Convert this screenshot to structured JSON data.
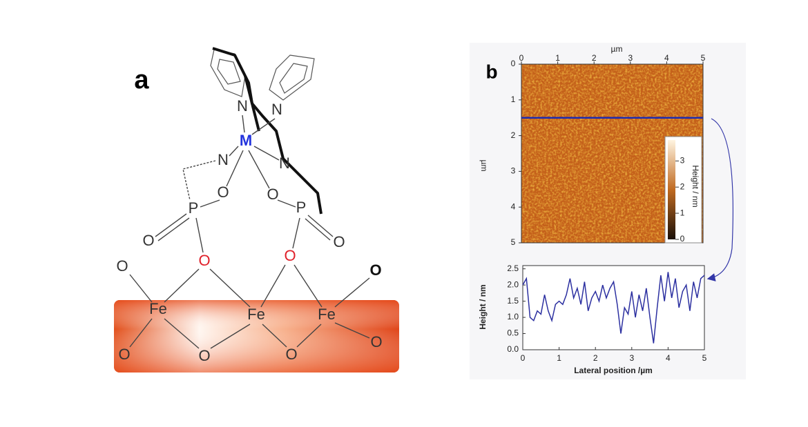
{
  "panel_a": {
    "label": "a",
    "atoms": [
      "N",
      "N",
      "M",
      "N",
      "N",
      "O",
      "O",
      "P",
      "P",
      "O",
      "O",
      "O",
      "O",
      "O",
      "O",
      "Fe",
      "Fe",
      "Fe",
      "O",
      "O",
      "O",
      "O"
    ]
  },
  "panel_b": {
    "label": "b",
    "afm_image": {
      "xlabel": "µm",
      "ylabel": "µm",
      "xlim": [
        0,
        5
      ],
      "ylim": [
        0,
        5
      ],
      "xticks": [
        0,
        1,
        2,
        3,
        4,
        5
      ],
      "yticks": [
        0,
        1,
        2,
        3,
        4,
        5
      ],
      "scan_line_y": 1.5,
      "colorbar": {
        "label": "Height / nm",
        "clim": [
          0,
          3.8
        ],
        "ticks": [
          0,
          1,
          2,
          3
        ]
      }
    }
  },
  "chart_data": {
    "type": "line",
    "xlabel": "Lateral position /µm",
    "ylabel": "Height / nm",
    "xlim": [
      0,
      5
    ],
    "ylim": [
      0,
      2.6
    ],
    "xticks": [
      0,
      1,
      2,
      3,
      4,
      5
    ],
    "yticks": [
      {
        "value": 0,
        "label": "0.0"
      },
      0.5,
      {
        "value": 1,
        "label": "1.0"
      },
      1.5,
      {
        "value": 2,
        "label": "2.0"
      },
      2.5
    ],
    "color": "#2b2fa0",
    "x": [
      0,
      0.1,
      0.2,
      0.3,
      0.4,
      0.5,
      0.6,
      0.7,
      0.8,
      0.9,
      1.0,
      1.1,
      1.2,
      1.3,
      1.4,
      1.5,
      1.6,
      1.7,
      1.8,
      1.9,
      2.0,
      2.1,
      2.2,
      2.3,
      2.4,
      2.5,
      2.6,
      2.7,
      2.8,
      2.9,
      3.0,
      3.1,
      3.2,
      3.3,
      3.4,
      3.5,
      3.6,
      3.7,
      3.8,
      3.9,
      4.0,
      4.1,
      4.2,
      4.3,
      4.4,
      4.5,
      4.6,
      4.7,
      4.8,
      4.9,
      5.0
    ],
    "values": [
      2.0,
      2.2,
      1.0,
      0.9,
      1.2,
      1.1,
      1.7,
      1.2,
      0.9,
      1.4,
      1.5,
      1.4,
      1.7,
      2.2,
      1.6,
      1.9,
      1.4,
      2.1,
      1.2,
      1.6,
      1.8,
      1.5,
      2.0,
      1.6,
      1.9,
      2.1,
      1.4,
      0.5,
      1.3,
      1.1,
      1.8,
      1.0,
      1.7,
      1.2,
      1.9,
      1.0,
      0.2,
      1.3,
      2.3,
      1.5,
      2.4,
      1.6,
      2.2,
      1.3,
      1.8,
      2.0,
      1.2,
      2.1,
      1.6,
      2.2,
      2.3
    ]
  }
}
